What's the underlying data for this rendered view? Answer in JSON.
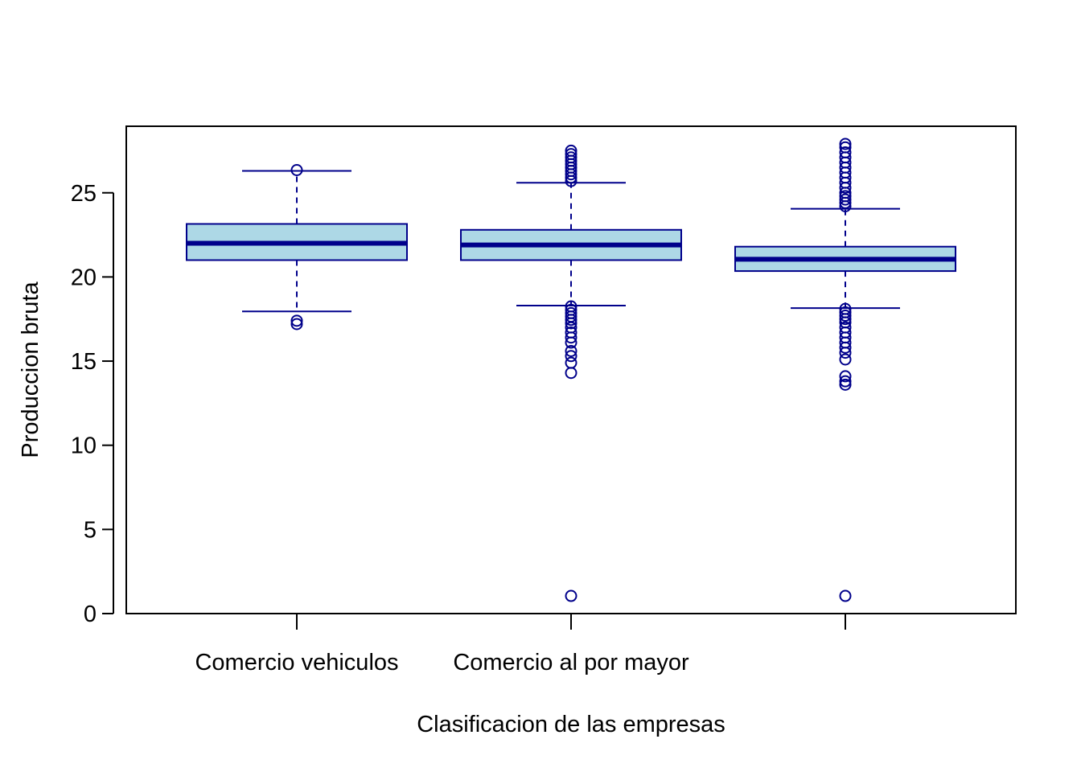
{
  "chart_data": {
    "type": "boxplot",
    "title": "",
    "xlabel": "Clasificacion de las empresas",
    "ylabel": "Produccion bruta",
    "ylim": [
      0,
      29
    ],
    "yticks": [
      0,
      5,
      10,
      15,
      20,
      25
    ],
    "grid": false,
    "legend": "none",
    "categories": [
      "Comercio vehiculos",
      "Comercio al por mayor",
      ""
    ],
    "boxes": [
      {
        "whisker_low": 17.95,
        "q1": 21.0,
        "median": 22.0,
        "q3": 23.15,
        "whisker_high": 26.3,
        "outliers": [
          26.35,
          17.2,
          17.4
        ]
      },
      {
        "whisker_low": 18.3,
        "q1": 21.0,
        "median": 21.9,
        "q3": 22.8,
        "whisker_high": 25.6,
        "outliers": [
          27.5,
          27.3,
          27.1,
          26.9,
          26.7,
          26.5,
          26.3,
          26.1,
          25.9,
          25.7,
          18.25,
          18.05,
          17.85,
          17.65,
          17.45,
          17.25,
          17.0,
          16.7,
          16.4,
          16.1,
          15.6,
          15.3,
          14.9,
          14.3,
          1.05
        ]
      },
      {
        "whisker_low": 18.15,
        "q1": 20.35,
        "median": 21.05,
        "q3": 21.8,
        "whisker_high": 24.05,
        "outliers": [
          27.9,
          27.7,
          27.4,
          27.1,
          26.8,
          26.5,
          26.2,
          25.9,
          25.6,
          25.3,
          25.0,
          24.8,
          24.6,
          24.4,
          24.2,
          18.1,
          17.9,
          17.7,
          17.5,
          17.3,
          17.0,
          16.7,
          16.4,
          16.1,
          15.8,
          15.5,
          15.1,
          14.1,
          13.8,
          13.6,
          1.05
        ]
      }
    ],
    "colors": {
      "box_fill": "#add8e6",
      "stroke": "#00008b",
      "axis": "#000000"
    }
  }
}
